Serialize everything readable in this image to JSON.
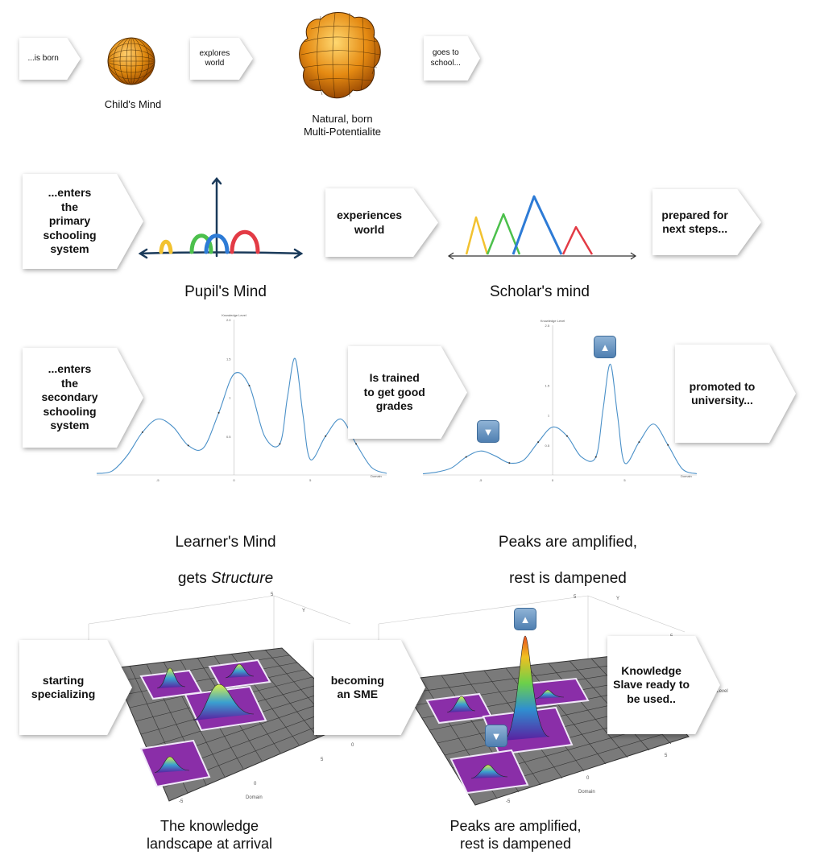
{
  "row1": {
    "arrows": [
      "...is born",
      "explores\nworld",
      "goes to\nschool..."
    ],
    "captions": [
      "Child's Mind",
      "Natural, born\nMulti-Potentialite"
    ]
  },
  "row2": {
    "arrows": [
      "...enters\nthe\nprimary\nschooling\nsystem",
      "experiences\nworld",
      "prepared for\nnext steps..."
    ],
    "captions": [
      "Pupil's Mind",
      "Scholar's mind"
    ]
  },
  "row3": {
    "arrows": [
      "...enters\nthe\nsecondary\nschooling\nsystem",
      "Is trained\nto get good\ngrades",
      "promoted to\nuniversity..."
    ],
    "captions_line1": [
      "Learner's Mind",
      "Peaks are amplified,"
    ],
    "captions_line2_left_prefix": "gets ",
    "captions_line2_left_em": "Structure",
    "captions_line2_right": "rest is dampened",
    "chart_left": {
      "type": "line",
      "ylabel": "Knowledge Level",
      "xlabel": "Domain",
      "y_ticks": [
        "0.5",
        "1",
        "1.5",
        "2.0"
      ],
      "x_ticks": [
        "-5",
        "0",
        "5"
      ]
    },
    "chart_right": {
      "type": "line",
      "ylabel": "Knowledge Level",
      "xlabel": "Domain",
      "y_ticks": [
        "0.5",
        "1",
        "1.5",
        "2.5"
      ],
      "x_ticks": [
        "-5",
        "0",
        "5"
      ]
    }
  },
  "row4": {
    "arrows": [
      "starting\nspecializing",
      "becoming\nan SME",
      "Knowledge\nSlave ready to\nbe used.."
    ],
    "captions": [
      "The knowledge\nlandscape at arrival",
      "Peaks are amplified,\nrest is dampened"
    ],
    "axis_labels": {
      "domain": "Domain",
      "y": "Y",
      "z": "Knowledge Level"
    }
  },
  "badges": {
    "up": "▲",
    "down": "▼"
  },
  "colors": {
    "curve": "#4a90c8",
    "yellow": "#f2c230",
    "green": "#4cc04c",
    "blue": "#2d7bd6",
    "red": "#e33b45",
    "grid": "#8d8d8d",
    "plate": "#8a2ea8"
  },
  "chart_data": [
    {
      "type": "line",
      "ylabel": "Knowledge Level",
      "xlabel": "Domain",
      "xlim": [
        -9,
        10
      ],
      "ylim": [
        0,
        2.0
      ],
      "series": [
        {
          "x": [
            -9,
            -8,
            -7,
            -6,
            -5,
            -4,
            -3,
            -2,
            -1,
            0,
            1,
            2,
            3,
            3.5,
            4,
            4.5,
            5,
            6,
            7,
            8,
            9,
            10
          ],
          "values": [
            0.02,
            0.05,
            0.25,
            0.55,
            0.72,
            0.62,
            0.38,
            0.35,
            0.8,
            1.3,
            1.15,
            0.5,
            0.4,
            1.0,
            1.5,
            0.8,
            0.2,
            0.5,
            0.72,
            0.4,
            0.1,
            0.02
          ]
        }
      ]
    },
    {
      "type": "line",
      "ylabel": "Knowledge Level",
      "xlabel": "Domain",
      "xlim": [
        -9,
        10
      ],
      "ylim": [
        0,
        2.5
      ],
      "series": [
        {
          "x": [
            -9,
            -8,
            -7,
            -6,
            -5,
            -4,
            -3,
            -2,
            -1,
            0,
            1,
            2,
            3,
            3.5,
            4,
            4.5,
            5,
            6,
            7,
            8,
            9,
            10
          ],
          "values": [
            0.02,
            0.05,
            0.12,
            0.3,
            0.4,
            0.32,
            0.2,
            0.25,
            0.55,
            0.8,
            0.65,
            0.3,
            0.3,
            1.1,
            1.85,
            1.0,
            0.2,
            0.55,
            0.85,
            0.5,
            0.1,
            0.02
          ]
        }
      ]
    }
  ]
}
